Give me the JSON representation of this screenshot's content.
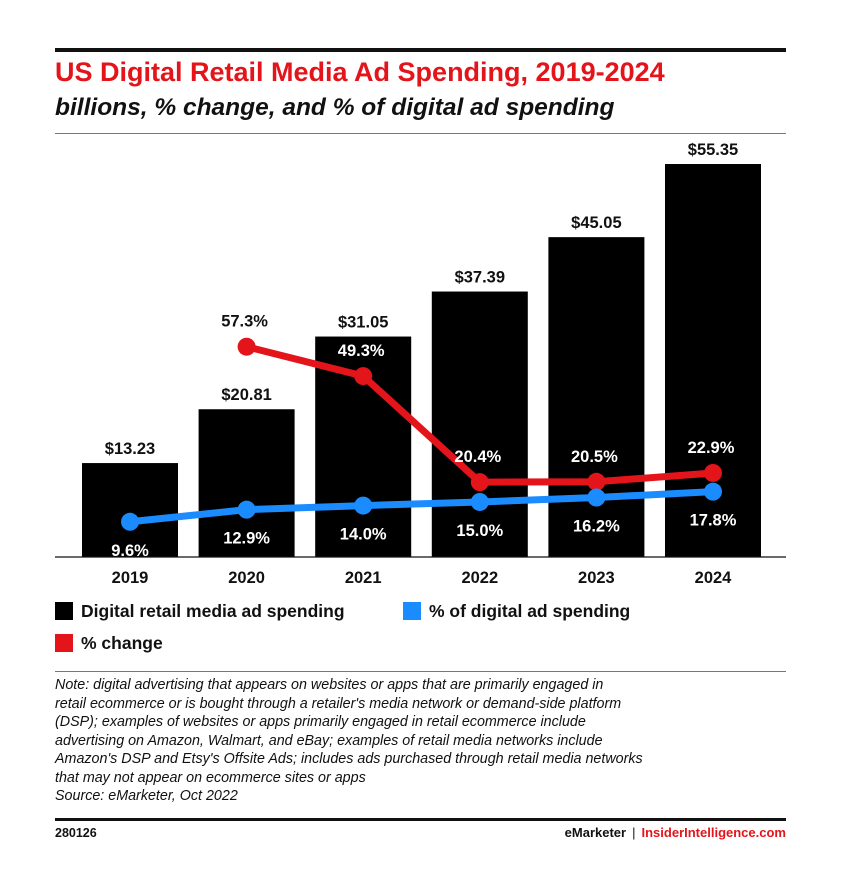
{
  "header": {
    "title": "US Digital Retail Media Ad Spending, 2019-2024",
    "subtitle": "billions, % change, and % of digital ad spending"
  },
  "colors": {
    "bars": "#000000",
    "pct_change": "#e3141a",
    "pct_digital": "#1a8cff",
    "title": "#e3141a"
  },
  "chart_data": {
    "type": "bar",
    "categories": [
      "2019",
      "2020",
      "2021",
      "2022",
      "2023",
      "2024"
    ],
    "series": [
      {
        "name": "Digital retail media ad spending",
        "type": "bar",
        "values": [
          13.23,
          20.81,
          31.05,
          37.39,
          45.05,
          55.35
        ],
        "labels": [
          "$13.23",
          "$20.81",
          "$31.05",
          "$37.39",
          "$45.05",
          "$55.35"
        ]
      },
      {
        "name": "% change",
        "type": "line",
        "values": [
          null,
          57.3,
          49.3,
          20.4,
          20.5,
          22.9
        ],
        "labels": [
          "",
          "57.3%",
          "49.3%",
          "20.4%",
          "20.5%",
          "22.9%"
        ]
      },
      {
        "name": "% of digital ad spending",
        "type": "line",
        "values": [
          9.6,
          12.9,
          14.0,
          15.0,
          16.2,
          17.8
        ],
        "labels": [
          "9.6%",
          "12.9%",
          "14.0%",
          "15.0%",
          "16.2%",
          "17.8%"
        ]
      }
    ],
    "legend_position": "bottom-left",
    "grid": false
  },
  "legend": {
    "items": [
      {
        "label": "Digital retail media ad spending",
        "color": "#000000"
      },
      {
        "label": "% of digital ad spending",
        "color": "#1a8cff"
      },
      {
        "label": "% change",
        "color": "#e3141a"
      }
    ]
  },
  "notes": {
    "lines": [
      "Note: digital advertising that appears on websites or apps that are primarily engaged in",
      "retail ecommerce or is bought through a retailer's media network or demand-side platform",
      "(DSP); examples of websites or apps primarily engaged in retail ecommerce include",
      "advertising on Amazon, Walmart, and eBay; examples of retail media networks include",
      "Amazon's DSP and Etsy's Offsite Ads; includes ads purchased through retail media networks",
      "that may not appear on ecommerce sites or apps"
    ],
    "source": "Source: eMarketer, Oct 2022"
  },
  "footer": {
    "id": "280126",
    "brand1": "eMarketer",
    "separator": "|",
    "brand2": "InsiderIntelligence.com"
  }
}
